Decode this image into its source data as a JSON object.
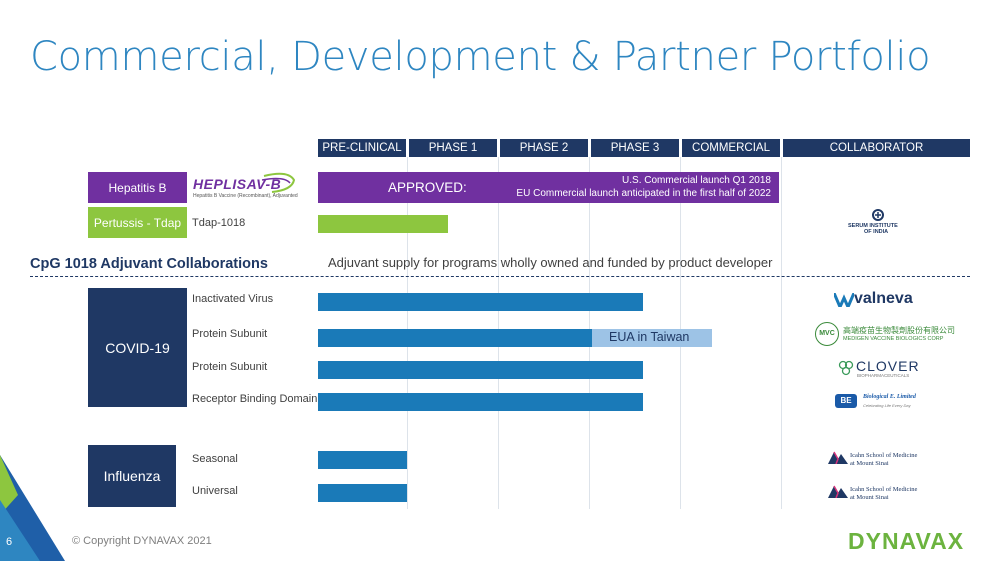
{
  "slide": {
    "title": "Commercial, Development & Partner Portfolio",
    "page_number": "6",
    "copyright": "© Copyright DYNAVAX 2021",
    "brand": "DYNAVAX"
  },
  "phases": [
    "PRE-CLINICAL",
    "PHASE 1",
    "PHASE 2",
    "PHASE 3",
    "COMMERCIAL",
    "COLLABORATOR"
  ],
  "hepb": {
    "category": "Hepatitis B",
    "product_logo": "HEPLISAV-B",
    "product_sub": "Hepatitis B Vaccine (Recombinant), Adjuvanted",
    "approved_label": "APPROVED:",
    "launch_us": "U.S. Commercial launch Q1 2018",
    "launch_eu": "EU Commercial launch anticipated in the first half of 2022"
  },
  "pertussis": {
    "category": "Pertussis - Tdap",
    "product": "Tdap-1018",
    "collaborator_line1": "SERUM INSTITUTE",
    "collaborator_line2": "OF INDIA"
  },
  "cpg": {
    "heading": "CpG 1018 Adjuvant Collaborations",
    "note": "Adjuvant supply for programs wholly owned and funded by product developer"
  },
  "covid": {
    "category": "COVID-19",
    "rows": [
      {
        "label": "Inactivated Virus",
        "collaborator": "valneva"
      },
      {
        "label": "Protein Subunit",
        "collaborator": "MEDIGEN VACCINE BIOLOGICS CORP",
        "collaborator_cn": "高端疫苗生物製劑股份有限公司",
        "badge": "MVC",
        "annotation": "EUA in Taiwan"
      },
      {
        "label": "Protein Subunit",
        "collaborator": "CLOVER",
        "collaborator_sub": "BIOPHARMACEUTICALS"
      },
      {
        "label": "Receptor Binding Domain",
        "collaborator": "Biological E. Limited",
        "collaborator_sub": "Celebrating Life Every Day",
        "badge": "BE"
      }
    ]
  },
  "influenza": {
    "category": "Influenza",
    "rows": [
      {
        "label": "Seasonal",
        "collaborator_line1": "Icahn School of Medicine",
        "collaborator_line2": "at Mount Sinai"
      },
      {
        "label": "Universal",
        "collaborator_line1": "Icahn School of Medicine",
        "collaborator_line2": "at Mount Sinai"
      }
    ]
  },
  "colors": {
    "title": "#2e86c1",
    "navy": "#1f3864",
    "purple": "#7030a0",
    "green": "#8dc63f",
    "bar_blue": "#1a7ab8",
    "eua_blue": "#9dc3e6",
    "dynavax_green": "#6cb33f"
  }
}
